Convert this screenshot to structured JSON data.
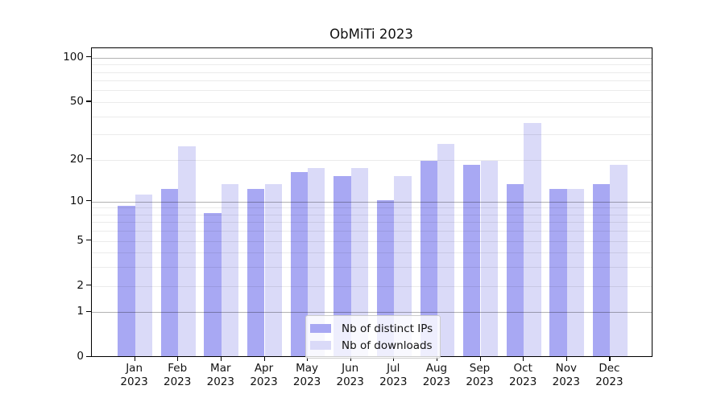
{
  "title": "ObMiTi 2023",
  "colors": {
    "distinct_ips": "#a8a8f3",
    "downloads": "#dadaf8",
    "grid_major": "rgba(0,0,0,0.30)",
    "grid_minor": "rgba(0,0,0,0.08)",
    "axis": "#000000",
    "legend_border": "#cccccc"
  },
  "y_axis": {
    "tick_labels": [
      "100",
      "50",
      "20",
      "10",
      "5",
      "2",
      "1",
      "0"
    ],
    "tick_values": [
      100,
      50,
      20,
      10,
      5,
      2,
      1,
      0
    ]
  },
  "x_axis": {
    "months": [
      "Jan",
      "Feb",
      "Mar",
      "Apr",
      "May",
      "Jun",
      "Jul",
      "Aug",
      "Sep",
      "Oct",
      "Nov",
      "Dec"
    ],
    "year": "2023"
  },
  "legend": {
    "items": [
      {
        "label": "Nb of distinct IPs",
        "series_key": "distinct_ips"
      },
      {
        "label": "Nb of downloads",
        "series_key": "downloads"
      }
    ]
  },
  "chart_data": {
    "type": "bar",
    "title": "ObMiTi 2023",
    "categories": [
      "Jan 2023",
      "Feb 2023",
      "Mar 2023",
      "Apr 2023",
      "May 2023",
      "Jun 2023",
      "Jul 2023",
      "Aug 2023",
      "Sep 2023",
      "Oct 2023",
      "Nov 2023",
      "Dec 2023"
    ],
    "series": [
      {
        "name": "Nb of distinct IPs",
        "color": "#a8a8f3",
        "values": [
          9,
          12,
          8,
          12,
          16,
          15,
          10,
          19,
          18,
          13,
          12,
          13
        ]
      },
      {
        "name": "Nb of downloads",
        "color": "#dadaf8",
        "values": [
          11,
          24,
          13,
          13,
          17,
          17,
          15,
          25,
          19,
          35,
          12,
          18
        ]
      }
    ],
    "y_scale": "log1p",
    "ylim": [
      0,
      116
    ],
    "y_ticks": [
      0,
      1,
      2,
      5,
      10,
      20,
      50,
      100
    ],
    "y_major_gridlines": [
      1,
      10,
      100
    ],
    "y_minor_gridlines": [
      2,
      3,
      4,
      5,
      6,
      7,
      8,
      9,
      20,
      30,
      40,
      50,
      60,
      70,
      80,
      90
    ],
    "grid": true,
    "legend_position": "lower center"
  }
}
